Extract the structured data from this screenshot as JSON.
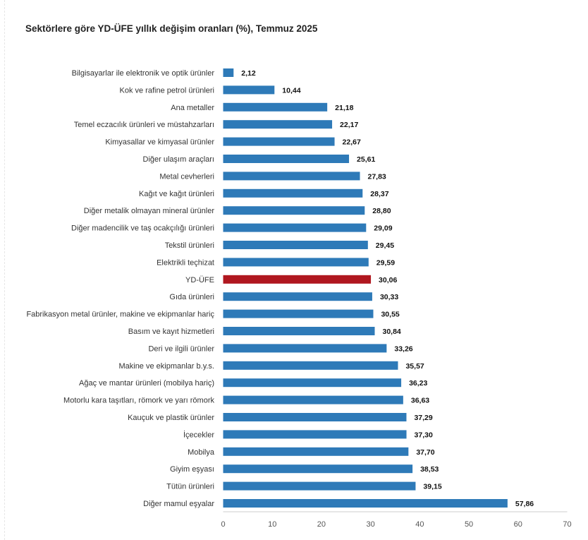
{
  "chart_data": {
    "type": "bar",
    "orientation": "horizontal",
    "title": "Sektörlere göre YD-ÜFE yıllık değişim oranları (%), Temmuz 2025",
    "xlabel": "",
    "ylabel": "",
    "xlim": [
      0,
      70
    ],
    "xticks": [
      0,
      10,
      20,
      30,
      40,
      50,
      60,
      70
    ],
    "grid": false,
    "legend": "none",
    "colors": {
      "default": "#2e7ab8",
      "highlight": "#b0171f"
    },
    "highlight_category": "YD-ÜFE",
    "categories": [
      "Bilgisayarlar ile elektronik ve optik ürünler",
      "Kok ve rafine petrol ürünleri",
      "Ana metaller",
      "Temel eczacılık ürünleri ve müstahzarları",
      "Kimyasallar ve kimyasal ürünler",
      "Diğer ulaşım araçları",
      "Metal cevherleri",
      "Kağıt ve kağıt ürünleri",
      "Diğer metalik olmayan mineral ürünler",
      "Diğer madencilik ve taş ocakçılığı ürünleri",
      "Tekstil ürünleri",
      "Elektrikli teçhizat",
      "YD-ÜFE",
      "Gıda ürünleri",
      "Fabrikasyon metal ürünler, makine ve ekipmanlar hariç",
      "Basım ve kayıt hizmetleri",
      "Deri ve ilgili ürünler",
      "Makine ve ekipmanlar b.y.s.",
      "Ağaç ve mantar ürünleri (mobilya hariç)",
      "Motorlu kara taşıtları, römork ve yarı römork",
      "Kauçuk ve plastik ürünler",
      "İçecekler",
      "Mobilya",
      "Giyim eşyası",
      "Tütün ürünleri",
      "Diğer mamul eşyalar"
    ],
    "values": [
      2.12,
      10.44,
      21.18,
      22.17,
      22.67,
      25.61,
      27.83,
      28.37,
      28.8,
      29.09,
      29.45,
      29.59,
      30.06,
      30.33,
      30.55,
      30.84,
      33.26,
      35.57,
      36.23,
      36.63,
      37.29,
      37.3,
      37.7,
      38.53,
      39.15,
      57.86
    ],
    "value_labels": [
      "2,12",
      "10,44",
      "21,18",
      "22,17",
      "22,67",
      "25,61",
      "27,83",
      "28,37",
      "28,80",
      "29,09",
      "29,45",
      "29,59",
      "30,06",
      "30,33",
      "30,55",
      "30,84",
      "33,26",
      "35,57",
      "36,23",
      "36,63",
      "37,29",
      "37,30",
      "37,70",
      "38,53",
      "39,15",
      "57,86"
    ]
  }
}
